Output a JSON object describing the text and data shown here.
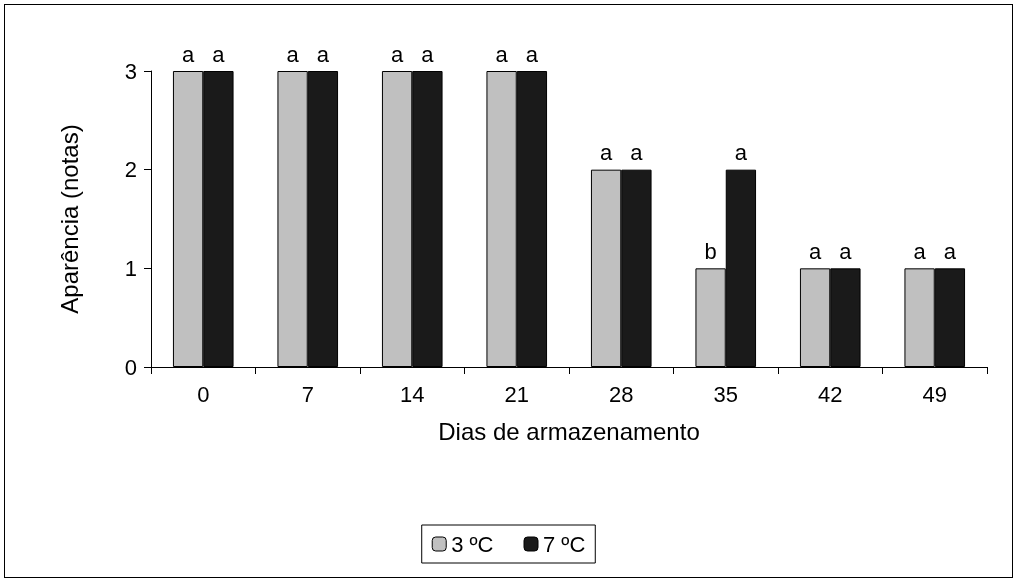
{
  "chart_data": {
    "type": "bar",
    "xlabel": "Dias de armazenamento",
    "ylabel": "Aparência (notas)",
    "categories": [
      "0",
      "7",
      "14",
      "21",
      "28",
      "35",
      "42",
      "49"
    ],
    "series": [
      {
        "name": "3 ºC",
        "color": "#c0c0c0",
        "values": [
          3,
          3,
          3,
          3,
          2,
          1,
          1,
          1
        ],
        "value_labels": [
          "a",
          "a",
          "a",
          "a",
          "a",
          "b",
          "a",
          "a"
        ]
      },
      {
        "name": "7 ºC",
        "color": "#1a1a1a",
        "values": [
          3,
          3,
          3,
          3,
          2,
          2,
          1,
          1
        ],
        "value_labels": [
          "a",
          "a",
          "a",
          "a",
          "a",
          "a",
          "a",
          "a"
        ]
      }
    ],
    "ylim": [
      0,
      3
    ],
    "yticks": [
      0,
      1,
      2,
      3
    ],
    "grid": false,
    "legend": "bottom"
  }
}
